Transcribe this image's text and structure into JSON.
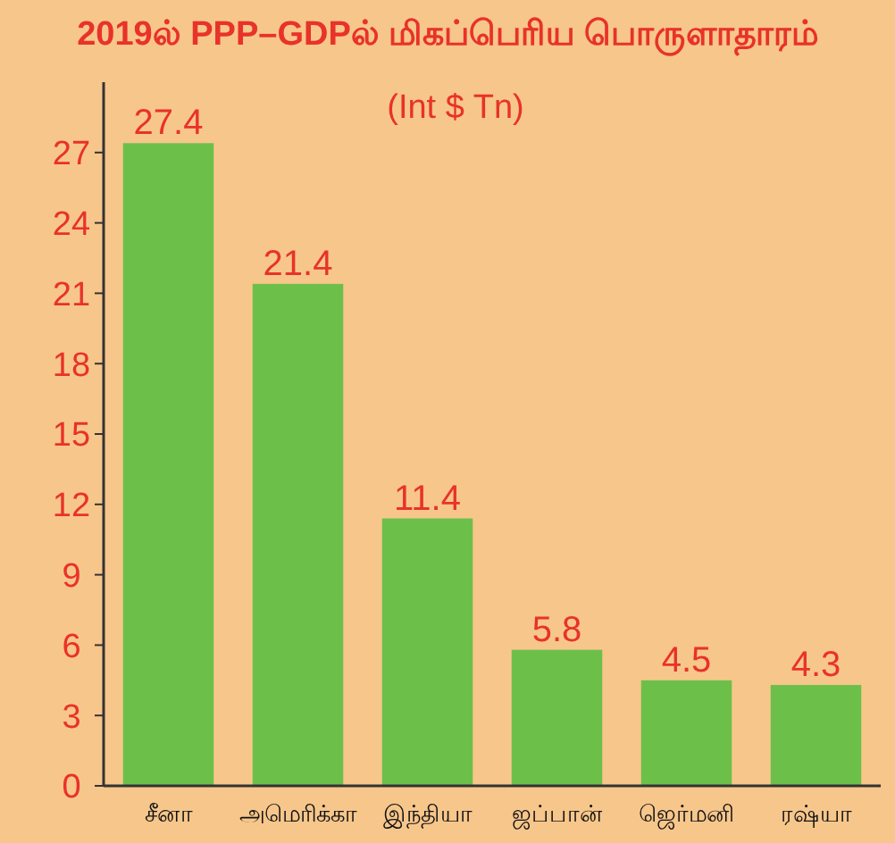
{
  "chart_data": {
    "type": "bar",
    "title": "2019ல் PPP–GDPல் மிகப்பெரிய பொருளாதாரம்",
    "subtitle": "(Int $ Tn)",
    "categories": [
      "சீனா",
      "அமெரிக்கா",
      "இந்தியா",
      "ஜப்பான்",
      "ஜெர்மனி",
      "ரஷ்யா"
    ],
    "values": [
      27.4,
      21.4,
      11.4,
      5.8,
      4.5,
      4.3
    ],
    "color": "#6cc04a",
    "ylim": [
      0,
      30
    ],
    "yticks": [
      0,
      3,
      6,
      9,
      12,
      15,
      18,
      21,
      24,
      27
    ],
    "data_labels": true
  }
}
